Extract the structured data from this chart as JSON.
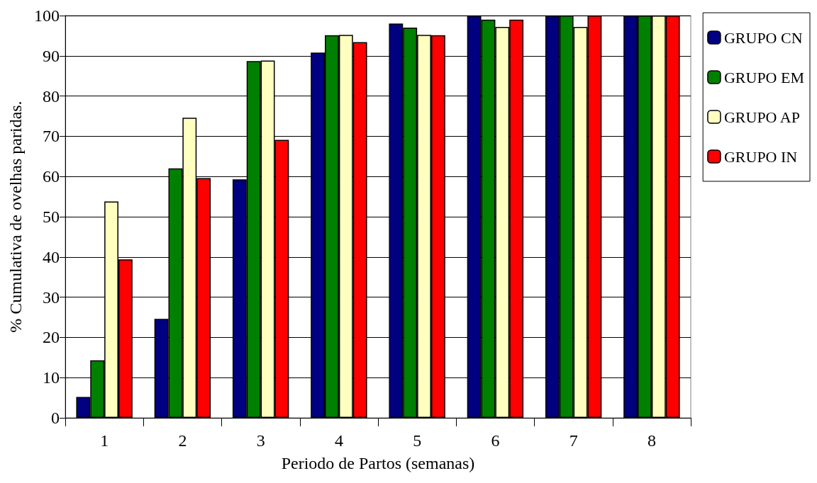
{
  "chart_data": {
    "type": "bar",
    "xlabel": "Periodo de Partos (semanas)",
    "ylabel": "% Cumulativa de ovelhas paridas.",
    "categories": [
      "1",
      "2",
      "3",
      "4",
      "5",
      "6",
      "7",
      "8"
    ],
    "series": [
      {
        "name": "GRUPO CN",
        "color": "#000080",
        "values": [
          5.2,
          24.6,
          59.3,
          90.8,
          98,
          100,
          100,
          100
        ]
      },
      {
        "name": "GRUPO EM",
        "color": "#008000",
        "values": [
          14.3,
          62,
          88.7,
          95.1,
          97,
          99,
          100,
          100
        ]
      },
      {
        "name": "GRUPO AP",
        "color": "#ffffc0",
        "values": [
          53.8,
          74.6,
          88.8,
          95.2,
          95.2,
          97.2,
          97.2,
          100
        ]
      },
      {
        "name": "GRUPO IN",
        "color": "#ff0000",
        "values": [
          39.4,
          59.6,
          69.1,
          93.4,
          95.1,
          99,
          100,
          100
        ]
      }
    ],
    "ylim": [
      0,
      100
    ],
    "yticks": [
      0,
      10,
      20,
      30,
      40,
      50,
      60,
      70,
      80,
      90,
      100
    ],
    "grid": "y",
    "legend": "top right"
  }
}
